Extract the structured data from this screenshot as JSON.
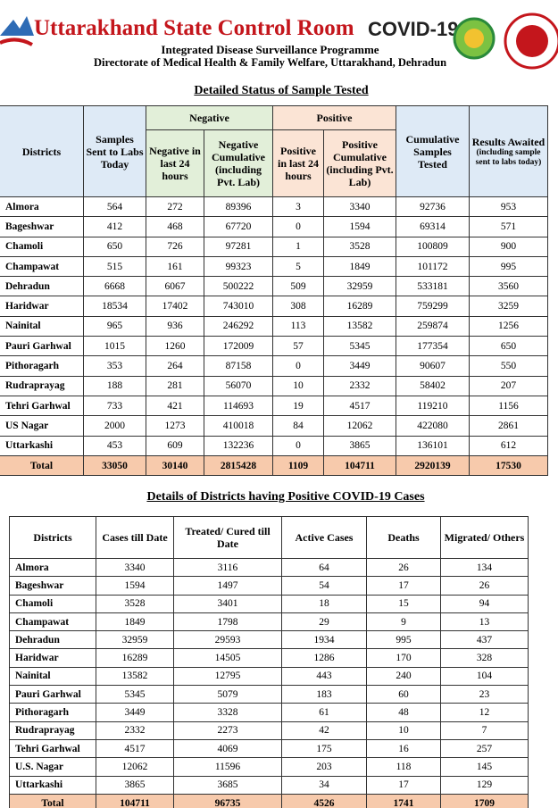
{
  "header": {
    "title": "Uttarakhand State Control Room",
    "badge": "COVID-19",
    "subtitle": "Integrated Disease Surveillance Programme",
    "directorate": "Directorate of Medical Health & Family Welfare, Uttarakhand, Dehradun"
  },
  "table1": {
    "title": "Detailed Status of Sample Tested",
    "headers": {
      "districts": "Districts",
      "samples_sent": "Samples Sent to Labs Today",
      "negative": "Negative",
      "positive": "Positive",
      "negative_24h": "Negative in last 24 hours",
      "negative_cumulative": "Negative Cumulative (including Pvt. Lab)",
      "positive_24h": "Positive in last 24 hours",
      "positive_cumulative": "Positive Cumulative (including Pvt. Lab)",
      "cumulative_samples": "Cumulative Samples Tested",
      "results_awaited": "Results Awaited",
      "results_awaited_note": "(including sample sent to labs today)"
    },
    "rows": [
      [
        "Almora",
        564,
        272,
        89396,
        3,
        3340,
        92736,
        953
      ],
      [
        "Bageshwar",
        412,
        468,
        67720,
        0,
        1594,
        69314,
        571
      ],
      [
        "Chamoli",
        650,
        726,
        97281,
        1,
        3528,
        100809,
        900
      ],
      [
        "Champawat",
        515,
        161,
        99323,
        5,
        1849,
        101172,
        995
      ],
      [
        "Dehradun",
        6668,
        6067,
        500222,
        509,
        32959,
        533181,
        3560
      ],
      [
        "Haridwar",
        18534,
        17402,
        743010,
        308,
        16289,
        759299,
        3259
      ],
      [
        "Nainital",
        965,
        936,
        246292,
        113,
        13582,
        259874,
        1256
      ],
      [
        "Pauri Garhwal",
        1015,
        1260,
        172009,
        57,
        5345,
        177354,
        650
      ],
      [
        "Pithoragarh",
        353,
        264,
        87158,
        0,
        3449,
        90607,
        550
      ],
      [
        "Rudraprayag",
        188,
        281,
        56070,
        10,
        2332,
        58402,
        207
      ],
      [
        "Tehri Garhwal",
        733,
        421,
        114693,
        19,
        4517,
        119210,
        1156
      ],
      [
        "US Nagar",
        2000,
        1273,
        410018,
        84,
        12062,
        422080,
        2861
      ],
      [
        "Uttarkashi",
        453,
        609,
        132236,
        0,
        3865,
        136101,
        612
      ]
    ],
    "total": [
      "Total",
      33050,
      30140,
      2815428,
      1109,
      104711,
      2920139,
      17530
    ]
  },
  "table2": {
    "title": "Details of Districts having Positive COVID-19 Cases",
    "headers": [
      "Districts",
      "Cases till Date",
      "Treated/ Cured till Date",
      "Active Cases",
      "Deaths",
      "Migrated/ Others"
    ],
    "rows": [
      [
        "Almora",
        3340,
        3116,
        64,
        26,
        134
      ],
      [
        "Bageshwar",
        1594,
        1497,
        54,
        17,
        26
      ],
      [
        "Chamoli",
        3528,
        3401,
        18,
        15,
        94
      ],
      [
        "Champawat",
        1849,
        1798,
        29,
        9,
        13
      ],
      [
        "Dehradun",
        32959,
        29593,
        1934,
        995,
        437
      ],
      [
        "Haridwar",
        16289,
        14505,
        1286,
        170,
        328
      ],
      [
        "Nainital",
        13582,
        12795,
        443,
        240,
        104
      ],
      [
        "Pauri Garhwal",
        5345,
        5079,
        183,
        60,
        23
      ],
      [
        "Pithoragarh",
        3449,
        3328,
        61,
        48,
        12
      ],
      [
        "Rudraprayag",
        2332,
        2273,
        42,
        10,
        7
      ],
      [
        "Tehri Garhwal",
        4517,
        4069,
        175,
        16,
        257
      ],
      [
        "U.S. Nagar",
        12062,
        11596,
        203,
        118,
        145
      ],
      [
        "Uttarkashi",
        3865,
        3685,
        34,
        17,
        129
      ]
    ],
    "total": [
      "Total",
      104711,
      96735,
      4526,
      1741,
      1709
    ]
  }
}
